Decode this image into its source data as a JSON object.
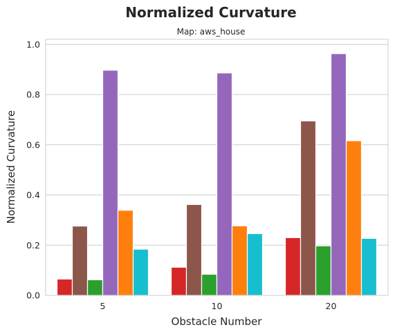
{
  "chart_data": {
    "type": "bar",
    "title": "Normalized Curvature",
    "subtitle": "Map: aws_house",
    "xlabel": "Obstacle Number",
    "ylabel": "Normalized Curvature",
    "categories": [
      "5",
      "10",
      "20"
    ],
    "ylim": [
      0,
      1.02
    ],
    "yticks": [
      "0.0",
      "0.2",
      "0.4",
      "0.6",
      "0.8",
      "1.0"
    ],
    "grid": true,
    "series": [
      {
        "color": "#d62728",
        "values": [
          0.065,
          0.112,
          0.23
        ]
      },
      {
        "color": "#8c564b",
        "values": [
          0.276,
          0.362,
          0.695
        ]
      },
      {
        "color": "#2ca02c",
        "values": [
          0.062,
          0.084,
          0.197
        ]
      },
      {
        "color": "#9467bd",
        "values": [
          0.897,
          0.886,
          0.963
        ]
      },
      {
        "color": "#ff7f0e",
        "values": [
          0.339,
          0.277,
          0.616
        ]
      },
      {
        "color": "#17becf",
        "values": [
          0.184,
          0.246,
          0.227
        ]
      }
    ]
  }
}
